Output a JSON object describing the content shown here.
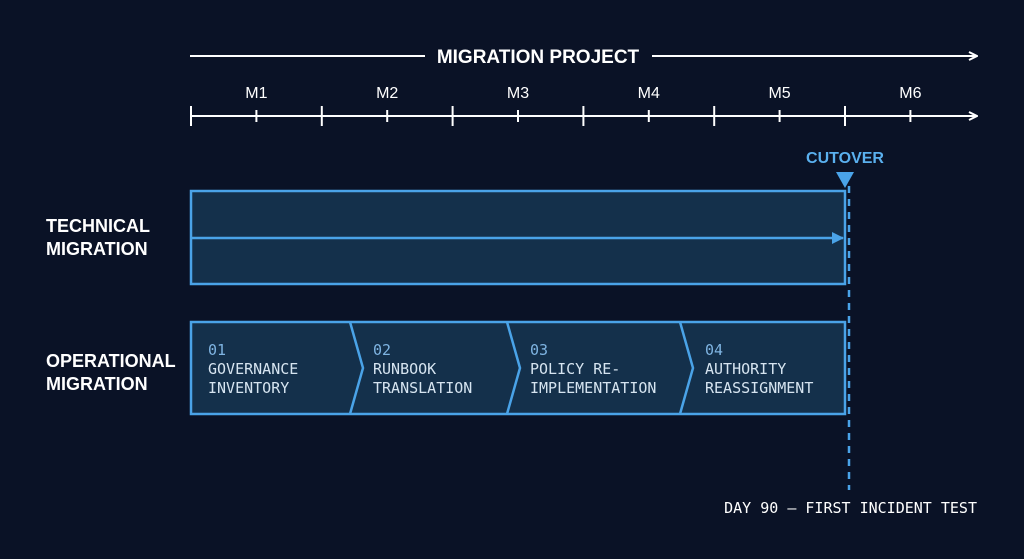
{
  "header": {
    "title": "MIGRATION PROJECT"
  },
  "months": [
    "M1",
    "M2",
    "M3",
    "M4",
    "M5",
    "M6"
  ],
  "milestone": {
    "label": "CUTOVER",
    "note": "DAY 90 — FIRST INCIDENT TEST"
  },
  "lanes": [
    {
      "label": [
        "TECHNICAL",
        "MIGRATION"
      ]
    },
    {
      "label": [
        "OPERATIONAL",
        "MIGRATION"
      ],
      "steps": [
        {
          "number": "01",
          "label": [
            "GOVERNANCE",
            "INVENTORY"
          ]
        },
        {
          "number": "02",
          "label": [
            "RUNBOOK",
            "TRANSLATION"
          ]
        },
        {
          "number": "03",
          "label": [
            "POLICY RE-",
            "IMPLEMENTATION"
          ]
        },
        {
          "number": "04",
          "label": [
            "AUTHORITY",
            "REASSIGNMENT"
          ]
        }
      ]
    }
  ]
}
